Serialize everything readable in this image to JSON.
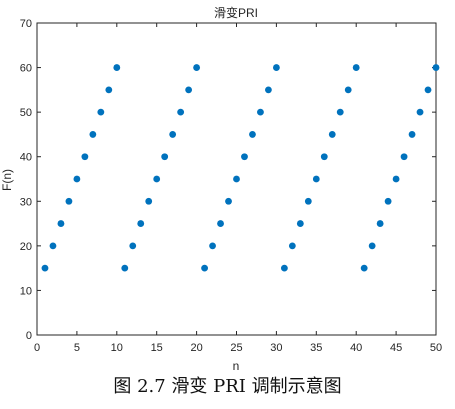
{
  "chart_data": {
    "type": "scatter",
    "title": "滑变PRI",
    "xlabel": "n",
    "ylabel": "F(n)",
    "xlim": [
      0,
      50
    ],
    "ylim": [
      0,
      70
    ],
    "xticks": [
      0,
      5,
      10,
      15,
      20,
      25,
      30,
      35,
      40,
      45,
      50
    ],
    "yticks": [
      0,
      10,
      20,
      30,
      40,
      50,
      60,
      70
    ],
    "grid": false,
    "marker_color": "#0072bd",
    "series": [
      {
        "x": [
          1,
          2,
          3,
          4,
          5,
          6,
          7,
          8,
          9,
          10,
          11,
          12,
          13,
          14,
          15,
          16,
          17,
          18,
          19,
          20,
          21,
          22,
          23,
          24,
          25,
          26,
          27,
          28,
          29,
          30,
          31,
          32,
          33,
          34,
          35,
          36,
          37,
          38,
          39,
          40,
          41,
          42,
          43,
          44,
          45,
          46,
          47,
          48,
          49,
          50
        ],
        "y": [
          15,
          20,
          25,
          30,
          35,
          40,
          45,
          50,
          55,
          60,
          15,
          20,
          25,
          30,
          35,
          40,
          45,
          50,
          55,
          60,
          15,
          20,
          25,
          30,
          35,
          40,
          45,
          50,
          55,
          60,
          15,
          20,
          25,
          30,
          35,
          40,
          45,
          50,
          55,
          60,
          15,
          20,
          25,
          30,
          35,
          40,
          45,
          50,
          55,
          60
        ]
      }
    ]
  },
  "caption": "图 2.7  滑变 PRI 调制示意图"
}
